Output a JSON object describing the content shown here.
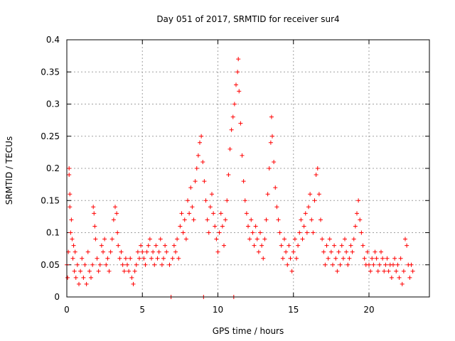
{
  "chart_data": {
    "type": "scatter",
    "title": "Day 051 of 2017, SRMTID for receiver sur4",
    "xlabel": "GPS time / hours",
    "ylabel": "SRMTID / TECUs",
    "xlim": [
      0,
      24
    ],
    "ylim": [
      0,
      0.4
    ],
    "x_ticks": [
      0,
      5,
      10,
      15,
      20
    ],
    "x_tick_labels": [
      "0",
      "5",
      "10",
      "15",
      "20"
    ],
    "y_ticks": [
      0,
      0.05,
      0.1,
      0.15,
      0.2,
      0.25,
      0.3,
      0.35,
      0.4
    ],
    "y_tick_labels": [
      "0",
      "0.05",
      "0.1",
      "0.15",
      "0.2",
      "0.25",
      "0.3",
      "0.35",
      "0.4"
    ],
    "grid": true,
    "legend": "none",
    "marker": "+",
    "color": "#ff0000",
    "series": [
      {
        "name": "sur4",
        "points": [
          [
            0.0,
            0.05
          ],
          [
            0.05,
            0.03
          ],
          [
            0.1,
            0.07
          ],
          [
            0.15,
            0.19
          ],
          [
            0.15,
            0.2
          ],
          [
            0.2,
            0.16
          ],
          [
            0.2,
            0.14
          ],
          [
            0.25,
            0.1
          ],
          [
            0.3,
            0.12
          ],
          [
            0.35,
            0.09
          ],
          [
            0.4,
            0.06
          ],
          [
            0.45,
            0.08
          ],
          [
            0.5,
            0.04
          ],
          [
            0.55,
            0.07
          ],
          [
            0.6,
            0.03
          ],
          [
            0.7,
            0.05
          ],
          [
            0.8,
            0.02
          ],
          [
            0.9,
            0.04
          ],
          [
            1.0,
            0.06
          ],
          [
            1.1,
            0.03
          ],
          [
            1.2,
            0.05
          ],
          [
            1.3,
            0.02
          ],
          [
            1.4,
            0.07
          ],
          [
            1.5,
            0.04
          ],
          [
            1.6,
            0.03
          ],
          [
            1.7,
            0.05
          ],
          [
            1.75,
            0.14
          ],
          [
            1.8,
            0.13
          ],
          [
            1.85,
            0.11
          ],
          [
            1.9,
            0.09
          ],
          [
            2.0,
            0.06
          ],
          [
            2.1,
            0.04
          ],
          [
            2.2,
            0.05
          ],
          [
            2.3,
            0.08
          ],
          [
            2.4,
            0.07
          ],
          [
            2.5,
            0.09
          ],
          [
            2.6,
            0.05
          ],
          [
            2.7,
            0.06
          ],
          [
            2.8,
            0.04
          ],
          [
            2.9,
            0.07
          ],
          [
            3.0,
            0.09
          ],
          [
            3.1,
            0.12
          ],
          [
            3.2,
            0.14
          ],
          [
            3.3,
            0.13
          ],
          [
            3.35,
            0.1
          ],
          [
            3.4,
            0.08
          ],
          [
            3.5,
            0.06
          ],
          [
            3.6,
            0.07
          ],
          [
            3.7,
            0.05
          ],
          [
            3.8,
            0.04
          ],
          [
            3.9,
            0.06
          ],
          [
            4.0,
            0.05
          ],
          [
            4.1,
            0.04
          ],
          [
            4.2,
            0.06
          ],
          [
            4.3,
            0.03
          ],
          [
            4.4,
            0.02
          ],
          [
            4.5,
            0.04
          ],
          [
            4.6,
            0.05
          ],
          [
            4.7,
            0.07
          ],
          [
            4.8,
            0.06
          ],
          [
            4.9,
            0.08
          ],
          [
            5.0,
            0.07
          ],
          [
            5.1,
            0.06
          ],
          [
            5.2,
            0.05
          ],
          [
            5.3,
            0.07
          ],
          [
            5.4,
            0.08
          ],
          [
            5.5,
            0.09
          ],
          [
            5.6,
            0.06
          ],
          [
            5.7,
            0.07
          ],
          [
            5.8,
            0.05
          ],
          [
            5.9,
            0.08
          ],
          [
            6.0,
            0.06
          ],
          [
            6.1,
            0.07
          ],
          [
            6.2,
            0.09
          ],
          [
            6.3,
            0.05
          ],
          [
            6.4,
            0.06
          ],
          [
            6.5,
            0.08
          ],
          [
            6.6,
            0.07
          ],
          [
            6.8,
            0.05
          ],
          [
            6.9,
            0.0
          ],
          [
            7.0,
            0.06
          ],
          [
            7.1,
            0.08
          ],
          [
            7.2,
            0.07
          ],
          [
            7.3,
            0.09
          ],
          [
            7.4,
            0.06
          ],
          [
            7.5,
            0.11
          ],
          [
            7.6,
            0.13
          ],
          [
            7.7,
            0.1
          ],
          [
            7.8,
            0.12
          ],
          [
            7.9,
            0.09
          ],
          [
            8.0,
            0.15
          ],
          [
            8.1,
            0.13
          ],
          [
            8.2,
            0.17
          ],
          [
            8.3,
            0.14
          ],
          [
            8.4,
            0.12
          ],
          [
            8.5,
            0.18
          ],
          [
            8.6,
            0.2
          ],
          [
            8.7,
            0.22
          ],
          [
            8.8,
            0.24
          ],
          [
            8.9,
            0.25
          ],
          [
            9.0,
            0.21
          ],
          [
            9.05,
            0.0
          ],
          [
            9.1,
            0.18
          ],
          [
            9.2,
            0.15
          ],
          [
            9.3,
            0.12
          ],
          [
            9.4,
            0.1
          ],
          [
            9.5,
            0.14
          ],
          [
            9.6,
            0.16
          ],
          [
            9.7,
            0.13
          ],
          [
            9.8,
            0.11
          ],
          [
            9.9,
            0.09
          ],
          [
            10.0,
            0.07
          ],
          [
            10.1,
            0.1
          ],
          [
            10.2,
            0.13
          ],
          [
            10.3,
            0.11
          ],
          [
            10.4,
            0.08
          ],
          [
            10.5,
            0.12
          ],
          [
            10.6,
            0.15
          ],
          [
            10.7,
            0.19
          ],
          [
            10.8,
            0.23
          ],
          [
            10.9,
            0.26
          ],
          [
            11.0,
            0.28
          ],
          [
            11.05,
            0.0
          ],
          [
            11.1,
            0.3
          ],
          [
            11.2,
            0.33
          ],
          [
            11.3,
            0.35
          ],
          [
            11.35,
            0.37
          ],
          [
            11.4,
            0.32
          ],
          [
            11.5,
            0.27
          ],
          [
            11.6,
            0.22
          ],
          [
            11.7,
            0.18
          ],
          [
            11.8,
            0.15
          ],
          [
            11.9,
            0.13
          ],
          [
            12.0,
            0.11
          ],
          [
            12.1,
            0.09
          ],
          [
            12.2,
            0.12
          ],
          [
            12.3,
            0.1
          ],
          [
            12.4,
            0.08
          ],
          [
            12.5,
            0.11
          ],
          [
            12.6,
            0.09
          ],
          [
            12.7,
            0.07
          ],
          [
            12.8,
            0.1
          ],
          [
            12.9,
            0.08
          ],
          [
            13.0,
            0.06
          ],
          [
            13.1,
            0.09
          ],
          [
            13.2,
            0.12
          ],
          [
            13.3,
            0.16
          ],
          [
            13.4,
            0.2
          ],
          [
            13.5,
            0.24
          ],
          [
            13.55,
            0.28
          ],
          [
            13.6,
            0.25
          ],
          [
            13.7,
            0.21
          ],
          [
            13.8,
            0.17
          ],
          [
            13.9,
            0.14
          ],
          [
            14.0,
            0.12
          ],
          [
            14.1,
            0.1
          ],
          [
            14.2,
            0.08
          ],
          [
            14.3,
            0.06
          ],
          [
            14.4,
            0.09
          ],
          [
            14.5,
            0.07
          ],
          [
            14.6,
            0.05
          ],
          [
            14.7,
            0.08
          ],
          [
            14.8,
            0.06
          ],
          [
            14.9,
            0.04
          ],
          [
            15.0,
            0.07
          ],
          [
            15.1,
            0.09
          ],
          [
            15.2,
            0.06
          ],
          [
            15.3,
            0.08
          ],
          [
            15.4,
            0.1
          ],
          [
            15.5,
            0.12
          ],
          [
            15.6,
            0.09
          ],
          [
            15.7,
            0.11
          ],
          [
            15.8,
            0.13
          ],
          [
            15.9,
            0.1
          ],
          [
            16.0,
            0.14
          ],
          [
            16.1,
            0.16
          ],
          [
            16.2,
            0.12
          ],
          [
            16.3,
            0.1
          ],
          [
            16.4,
            0.15
          ],
          [
            16.5,
            0.19
          ],
          [
            16.6,
            0.2
          ],
          [
            16.7,
            0.16
          ],
          [
            16.8,
            0.12
          ],
          [
            16.9,
            0.09
          ],
          [
            17.0,
            0.07
          ],
          [
            17.1,
            0.05
          ],
          [
            17.2,
            0.08
          ],
          [
            17.3,
            0.06
          ],
          [
            17.4,
            0.09
          ],
          [
            17.5,
            0.07
          ],
          [
            17.6,
            0.05
          ],
          [
            17.7,
            0.08
          ],
          [
            17.8,
            0.06
          ],
          [
            17.9,
            0.04
          ],
          [
            18.0,
            0.07
          ],
          [
            18.1,
            0.05
          ],
          [
            18.2,
            0.08
          ],
          [
            18.3,
            0.06
          ],
          [
            18.4,
            0.09
          ],
          [
            18.5,
            0.07
          ],
          [
            18.6,
            0.05
          ],
          [
            18.7,
            0.06
          ],
          [
            18.8,
            0.08
          ],
          [
            18.9,
            0.07
          ],
          [
            19.0,
            0.09
          ],
          [
            19.1,
            0.11
          ],
          [
            19.2,
            0.13
          ],
          [
            19.3,
            0.15
          ],
          [
            19.4,
            0.12
          ],
          [
            19.5,
            0.1
          ],
          [
            19.6,
            0.08
          ],
          [
            19.7,
            0.06
          ],
          [
            19.8,
            0.05
          ],
          [
            19.9,
            0.07
          ],
          [
            20.0,
            0.05
          ],
          [
            20.1,
            0.04
          ],
          [
            20.2,
            0.06
          ],
          [
            20.3,
            0.05
          ],
          [
            20.4,
            0.07
          ],
          [
            20.5,
            0.06
          ],
          [
            20.6,
            0.04
          ],
          [
            20.7,
            0.05
          ],
          [
            20.8,
            0.07
          ],
          [
            20.9,
            0.06
          ],
          [
            21.0,
            0.04
          ],
          [
            21.1,
            0.05
          ],
          [
            21.2,
            0.06
          ],
          [
            21.3,
            0.04
          ],
          [
            21.4,
            0.05
          ],
          [
            21.5,
            0.03
          ],
          [
            21.6,
            0.05
          ],
          [
            21.7,
            0.06
          ],
          [
            21.8,
            0.04
          ],
          [
            21.9,
            0.05
          ],
          [
            22.0,
            0.03
          ],
          [
            22.1,
            0.06
          ],
          [
            22.2,
            0.02
          ],
          [
            22.3,
            0.04
          ],
          [
            22.4,
            0.09
          ],
          [
            22.5,
            0.08
          ],
          [
            22.6,
            0.05
          ],
          [
            22.7,
            0.03
          ],
          [
            22.8,
            0.05
          ],
          [
            22.9,
            0.04
          ]
        ]
      }
    ]
  }
}
